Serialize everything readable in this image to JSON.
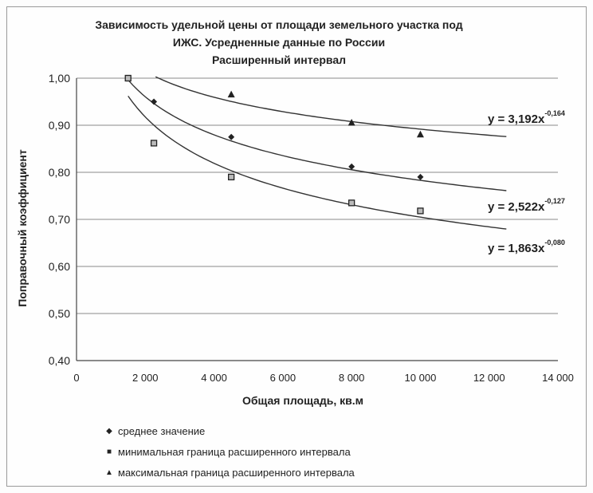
{
  "chart_data": {
    "type": "scatter",
    "title_lines": [
      "Зависимость удельной цены от площади земельного  участка под",
      "ИЖС. Усредненные данные по России",
      "Расширенный интервал"
    ],
    "xlabel": "Общая площадь, кв.м",
    "ylabel": "Поправочный коэффициент",
    "xlim": [
      0,
      14000
    ],
    "ylim": [
      0.4,
      1.0
    ],
    "x_ticks": [
      "0",
      "2 000",
      "4 000",
      "6 000",
      "8 000",
      "10 000",
      "12 000",
      "14 000"
    ],
    "y_ticks": [
      "0,40",
      "0,50",
      "0,60",
      "0,70",
      "0,80",
      "0,90",
      "1,00"
    ],
    "grid": true,
    "series": [
      {
        "name": "среднее значение",
        "marker": "diamond",
        "x": [
          1500,
          2250,
          4500,
          8000,
          10000
        ],
        "y": [
          1.0,
          0.95,
          0.875,
          0.812,
          0.79
        ],
        "trend": {
          "a": 2.522,
          "b": -0.127,
          "from": 1500,
          "to": 12500,
          "label": "y = 2,522x",
          "exp": "-0,127"
        }
      },
      {
        "name": "минимальная граница расширенного интервала",
        "marker": "square",
        "x": [
          1500,
          2250,
          4500,
          8000,
          10000
        ],
        "y": [
          1.0,
          0.862,
          0.79,
          0.735,
          0.718
        ],
        "trend": {
          "a": 3.192,
          "b": -0.164,
          "from": 1500,
          "to": 12500,
          "label": "y = 3,192x",
          "exp": "-0,164"
        }
      },
      {
        "name": "максимальная граница расширенного интервала",
        "marker": "triangle",
        "x": [
          4500,
          8000,
          10000
        ],
        "y": [
          0.965,
          0.905,
          0.88
        ],
        "trend": {
          "a": 1.863,
          "b": -0.08,
          "from": 2300,
          "to": 12500,
          "label": "y = 1,863x",
          "exp": "-0,080"
        }
      }
    ]
  }
}
